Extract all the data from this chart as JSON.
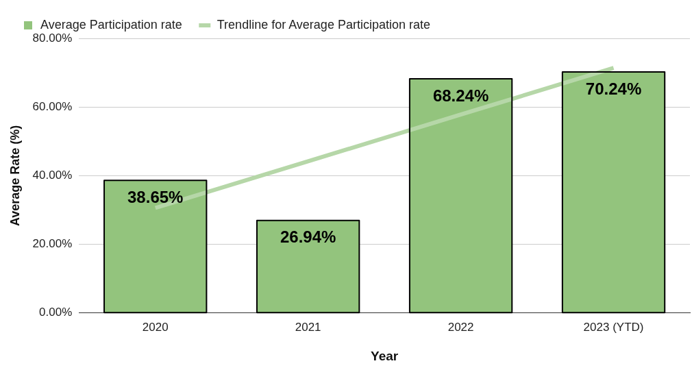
{
  "chart_data": {
    "type": "bar",
    "xlabel": "Year",
    "ylabel": "Average Rate (%)",
    "categories": [
      "2020",
      "2021",
      "2022",
      "2023 (YTD)"
    ],
    "series": [
      {
        "name": "Average Participation rate",
        "color": "#93c47d",
        "values": [
          38.65,
          26.94,
          68.24,
          70.24
        ],
        "value_labels": [
          "38.65%",
          "26.94%",
          "68.24%",
          "70.24%"
        ]
      },
      {
        "name": "Trendline for Average Participation rate",
        "type": "line",
        "color": "#b6d7a8",
        "values": [
          30.6,
          44.2,
          57.8,
          71.4
        ]
      }
    ],
    "ylim": [
      0,
      80
    ],
    "yticks": [
      {
        "value": 0,
        "label": "0.00%"
      },
      {
        "value": 20,
        "label": "20.00%"
      },
      {
        "value": 40,
        "label": "40.00%"
      },
      {
        "value": 60,
        "label": "60.00%"
      },
      {
        "value": 80,
        "label": "80.00%"
      }
    ],
    "grid": "y",
    "legend": "top"
  }
}
